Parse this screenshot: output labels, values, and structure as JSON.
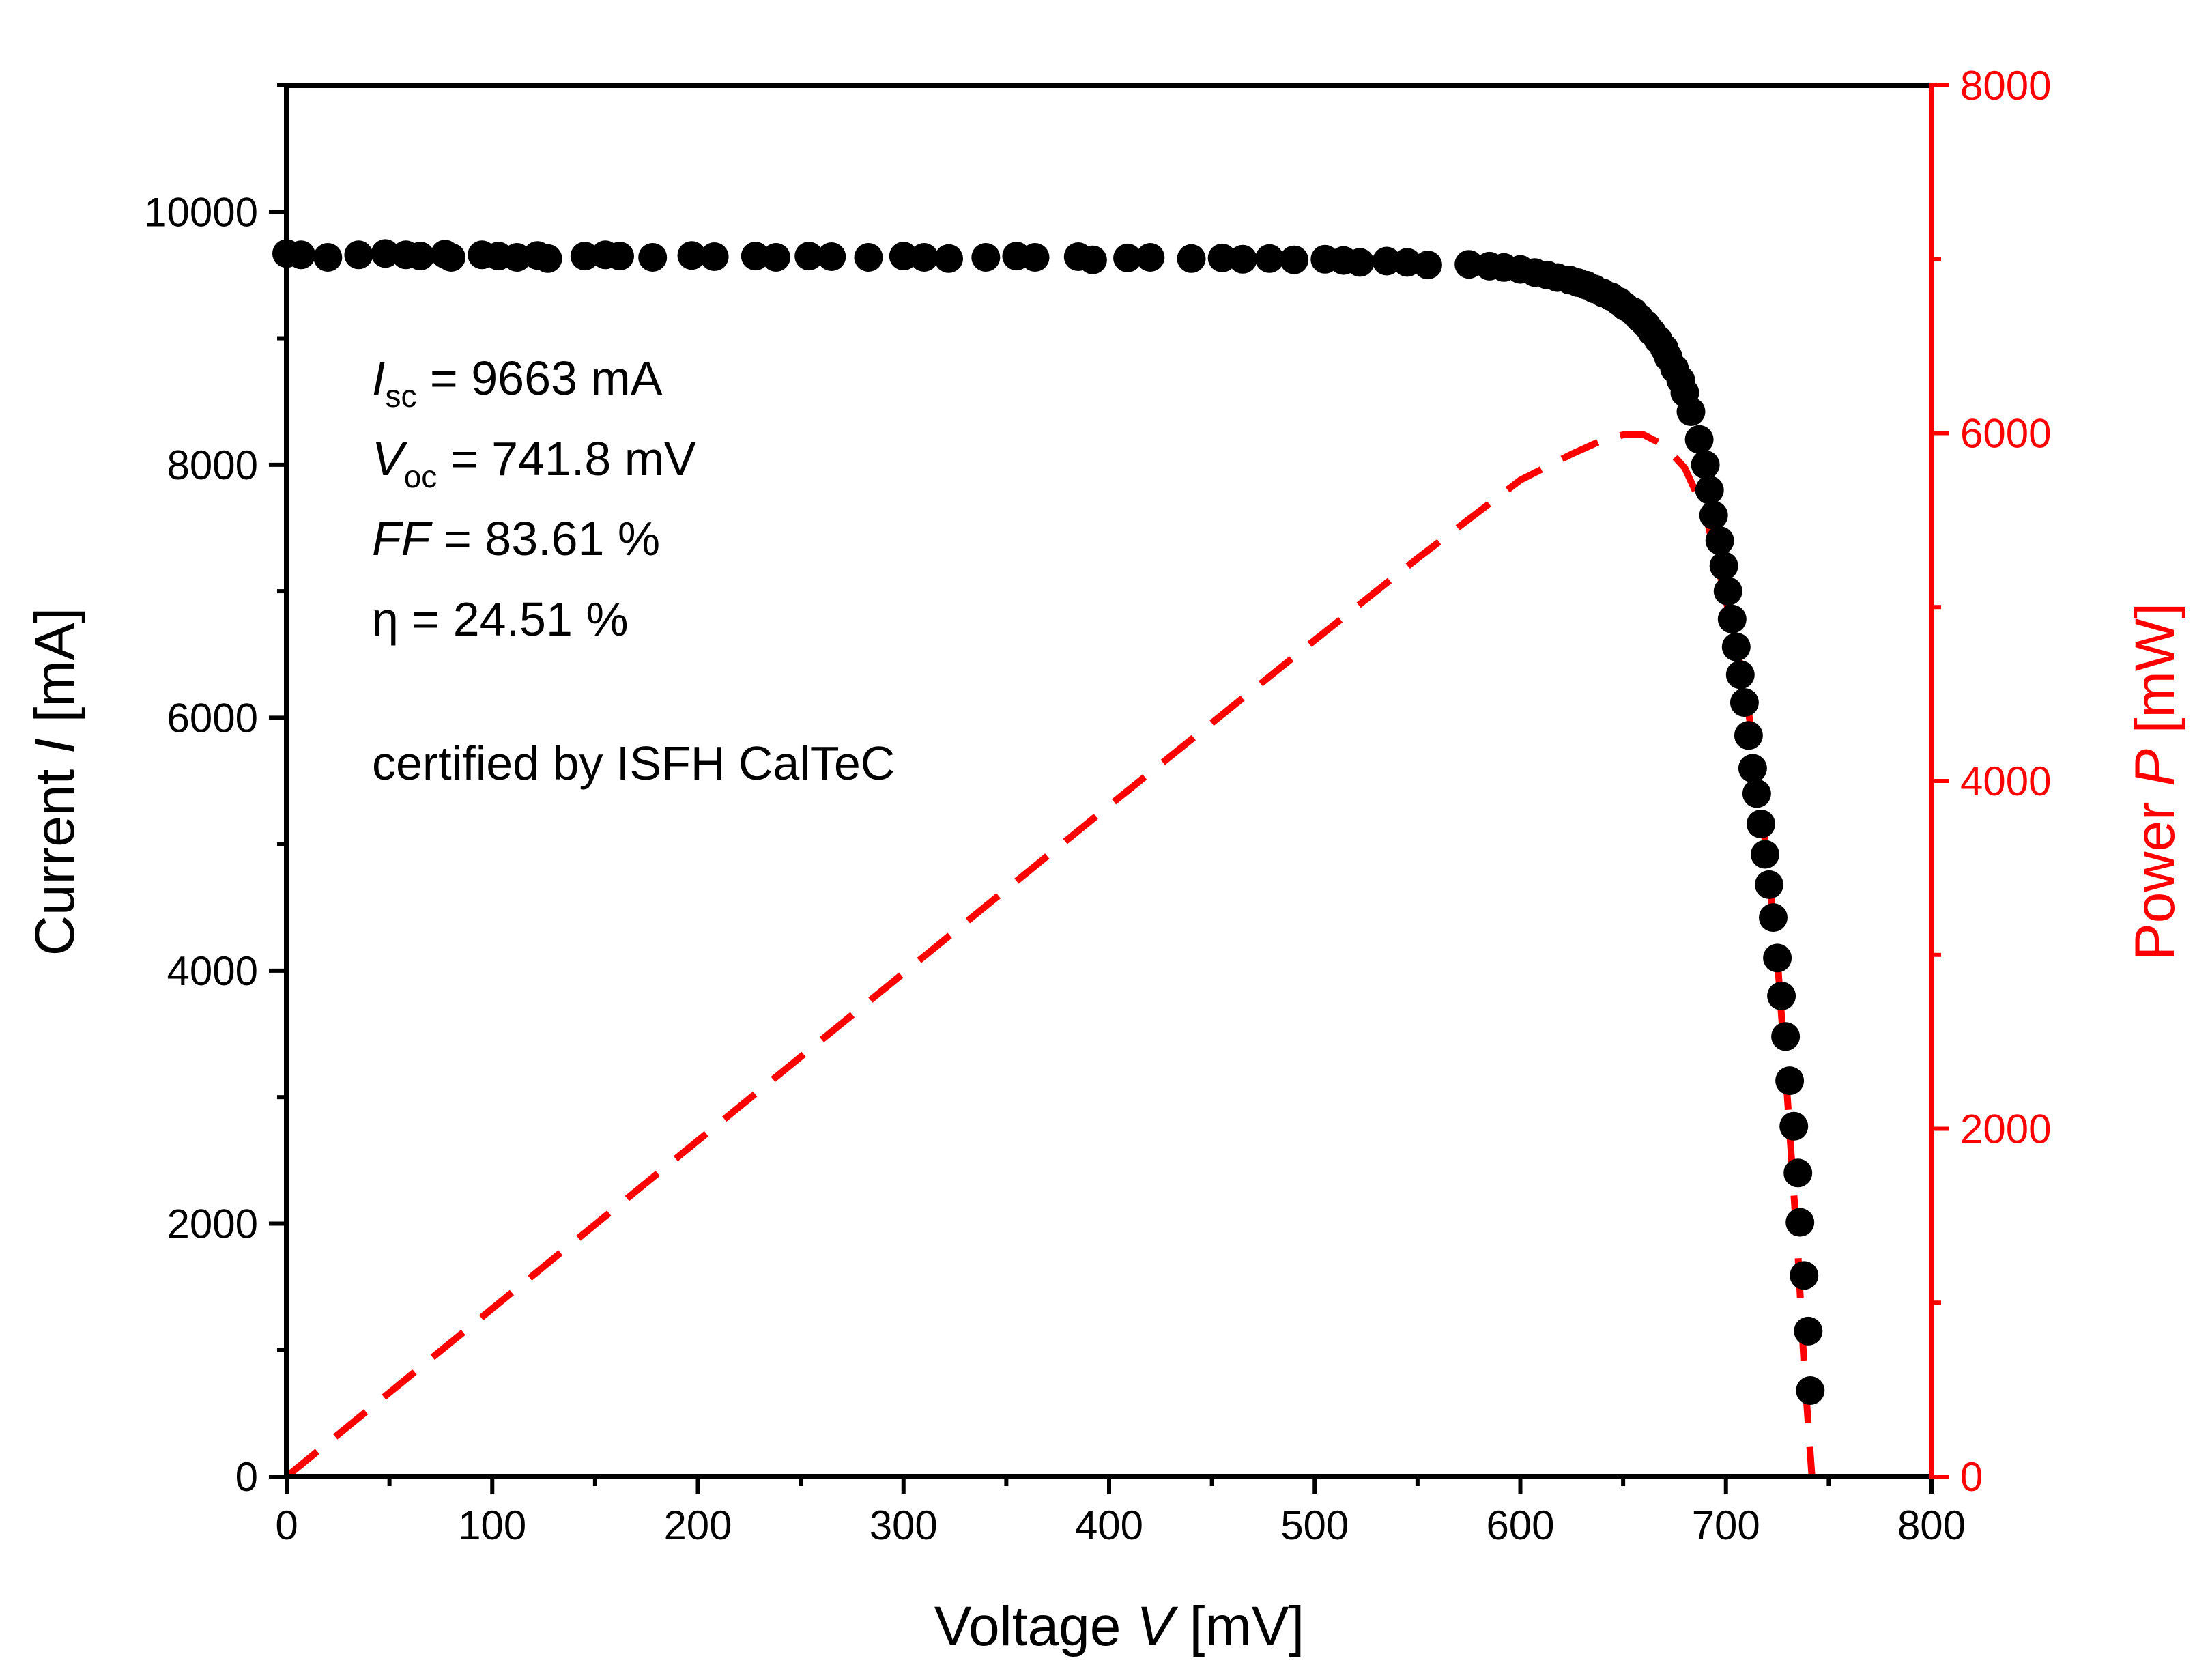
{
  "chart_data": {
    "type": "scatter",
    "title": "",
    "xlabel": {
      "prefix": "Voltage ",
      "symbol": "V",
      "unit": " [mV]"
    },
    "ylabel_left": {
      "prefix": "Current ",
      "symbol": "I",
      "unit": " [mA]"
    },
    "ylabel_right": {
      "prefix": "Power ",
      "symbol": "P",
      "unit": " [mW]"
    },
    "xlim": [
      0,
      800
    ],
    "ylim_left": [
      0,
      11000
    ],
    "ylim_right": [
      0,
      8000
    ],
    "x_ticks": [
      "0",
      "100",
      "200",
      "300",
      "400",
      "500",
      "600",
      "700",
      "800"
    ],
    "y_left_ticks": [
      "0",
      "2000",
      "4000",
      "6000",
      "8000",
      "10000"
    ],
    "y_right_ticks": [
      "0",
      "2000",
      "4000",
      "6000",
      "8000"
    ],
    "grid": false,
    "colors": {
      "current": "#000000",
      "power": "#ff0000",
      "axis": "#000000",
      "right_axis": "#ff0000"
    },
    "annotations": {
      "isc": {
        "symbol": "I",
        "sub": "sc",
        "text": " = 9663 mA"
      },
      "voc": {
        "symbol": "V",
        "sub": "oc",
        "text": " = 741.8 mV"
      },
      "ff": {
        "symbol": "FF",
        "text": " = 83.61 %"
      },
      "eta": {
        "text": "η = 24.51 %"
      },
      "cert": {
        "text": "certified by ISFH CalTeC"
      }
    },
    "series": [
      {
        "axis": "left",
        "style": "markers",
        "x": [
          0,
          7,
          20,
          35,
          48,
          58,
          65,
          77,
          80,
          95,
          103,
          112,
          122,
          127,
          145,
          155,
          162,
          178,
          197,
          208,
          228,
          238,
          254,
          265,
          283,
          300,
          310,
          322,
          340,
          355,
          364,
          385,
          392,
          409,
          420,
          440,
          455,
          465,
          478,
          490,
          505,
          514,
          522,
          535,
          545,
          555,
          575,
          585,
          592,
          600,
          607,
          613,
          618,
          624,
          628,
          632,
          636,
          640,
          644,
          648,
          651,
          655,
          658,
          661,
          664,
          667,
          670,
          672,
          675,
          678,
          680,
          683,
          687,
          690,
          692,
          694,
          697,
          699,
          701,
          703,
          705,
          707,
          709,
          711,
          713,
          715,
          717,
          719,
          721,
          723,
          725,
          727,
          729,
          731,
          733,
          735,
          736,
          738,
          740,
          741
        ],
        "y": [
          9670,
          9660,
          9640,
          9660,
          9670,
          9660,
          9650,
          9665,
          9640,
          9660,
          9650,
          9640,
          9655,
          9630,
          9650,
          9660,
          9650,
          9640,
          9655,
          9645,
          9650,
          9640,
          9650,
          9645,
          9640,
          9650,
          9640,
          9630,
          9640,
          9650,
          9640,
          9645,
          9620,
          9635,
          9640,
          9630,
          9635,
          9625,
          9630,
          9620,
          9625,
          9615,
          9600,
          9610,
          9600,
          9580,
          9585,
          9570,
          9560,
          9545,
          9520,
          9500,
          9480,
          9460,
          9440,
          9420,
          9390,
          9360,
          9330,
          9290,
          9250,
          9210,
          9160,
          9110,
          9050,
          8990,
          8920,
          8850,
          8760,
          8670,
          8570,
          8420,
          8200,
          8000,
          7800,
          7600,
          7400,
          7200,
          7000,
          6780,
          6560,
          6340,
          6120,
          5860,
          5600,
          5400,
          5160,
          4920,
          4680,
          4420,
          4100,
          3800,
          3480,
          3130,
          2770,
          2400,
          2010,
          1590,
          1150,
          680
        ]
      },
      {
        "axis": "right",
        "style": "dashed-line",
        "x": [
          0,
          100,
          200,
          300,
          400,
          500,
          550,
          600,
          625,
          640,
          650,
          660,
          670,
          680,
          690,
          700,
          705,
          710,
          715,
          720,
          725,
          730,
          735,
          738,
          741.8
        ],
        "y": [
          0,
          966,
          1932,
          2895,
          3858,
          4810,
          5280,
          5730,
          5880,
          5960,
          5990,
          5990,
          5930,
          5800,
          5540,
          5040,
          4780,
          4480,
          4060,
          3560,
          2980,
          2160,
          1280,
          640,
          0
        ]
      }
    ]
  }
}
